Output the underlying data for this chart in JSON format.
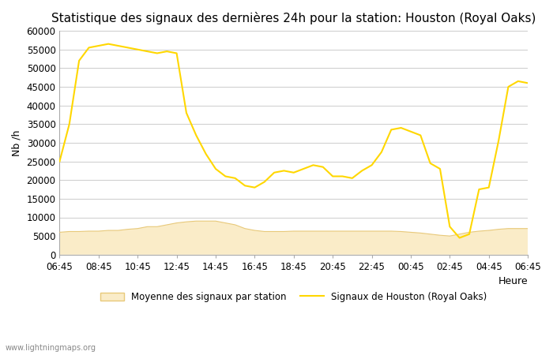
{
  "title": "Statistique des signaux des dernières 24h pour la station: Houston (Royal Oaks)",
  "xlabel": "Heure",
  "ylabel": "Nb /h",
  "watermark": "www.lightningmaps.org",
  "legend_avg": "Moyenne des signaux par station",
  "legend_houston": "Signaux de Houston (Royal Oaks)",
  "x_ticks": [
    "06:45",
    "08:45",
    "10:45",
    "12:45",
    "14:45",
    "16:45",
    "18:45",
    "20:45",
    "22:45",
    "00:45",
    "02:45",
    "04:45",
    "06:45"
  ],
  "ylim": [
    0,
    60000
  ],
  "y_ticks": [
    0,
    5000,
    10000,
    15000,
    20000,
    25000,
    30000,
    35000,
    40000,
    45000,
    50000,
    55000,
    60000
  ],
  "houston_x": [
    0,
    1,
    2,
    3,
    4,
    5,
    6,
    7,
    8,
    9,
    10,
    11,
    12,
    13,
    14,
    15,
    16,
    17,
    18,
    19,
    20,
    21,
    22,
    23,
    24,
    25,
    26,
    27,
    28,
    29,
    30,
    31,
    32,
    33,
    34,
    35,
    36,
    37,
    38,
    39,
    40,
    41,
    42,
    43,
    44,
    45,
    46,
    47,
    48
  ],
  "houston_y": [
    25000,
    35000,
    52000,
    55500,
    56000,
    56500,
    56000,
    55500,
    55000,
    54500,
    54000,
    54500,
    54000,
    38000,
    32000,
    27000,
    23000,
    21000,
    20500,
    18500,
    18000,
    19500,
    22000,
    22500,
    22000,
    23000,
    24000,
    23500,
    21000,
    21000,
    20500,
    22500,
    24000,
    27500,
    33500,
    34000,
    33000,
    32000,
    24500,
    23000,
    7500,
    4500,
    5500,
    17500,
    18000,
    30500,
    45000,
    46500,
    46000
  ],
  "avg_x": [
    0,
    1,
    2,
    3,
    4,
    5,
    6,
    7,
    8,
    9,
    10,
    11,
    12,
    13,
    14,
    15,
    16,
    17,
    18,
    19,
    20,
    21,
    22,
    23,
    24,
    25,
    26,
    27,
    28,
    29,
    30,
    31,
    32,
    33,
    34,
    35,
    36,
    37,
    38,
    39,
    40,
    41,
    42,
    43,
    44,
    45,
    46,
    47,
    48
  ],
  "avg_y": [
    6000,
    6200,
    6200,
    6300,
    6300,
    6500,
    6500,
    6800,
    7000,
    7500,
    7500,
    8000,
    8500,
    8800,
    9000,
    9000,
    9000,
    8500,
    8000,
    7000,
    6500,
    6200,
    6200,
    6200,
    6300,
    6300,
    6300,
    6300,
    6300,
    6300,
    6300,
    6300,
    6300,
    6300,
    6300,
    6200,
    6000,
    5800,
    5500,
    5200,
    5000,
    5500,
    6000,
    6300,
    6500,
    6800,
    7000,
    7000,
    7000
  ],
  "houston_color": "#FFD700",
  "avg_fill_color": "#FAECC8",
  "avg_line_color": "#E8C97A",
  "background_color": "#FFFFFF",
  "grid_color": "#CCCCCC",
  "title_fontsize": 11,
  "axis_fontsize": 9,
  "tick_fontsize": 8.5
}
